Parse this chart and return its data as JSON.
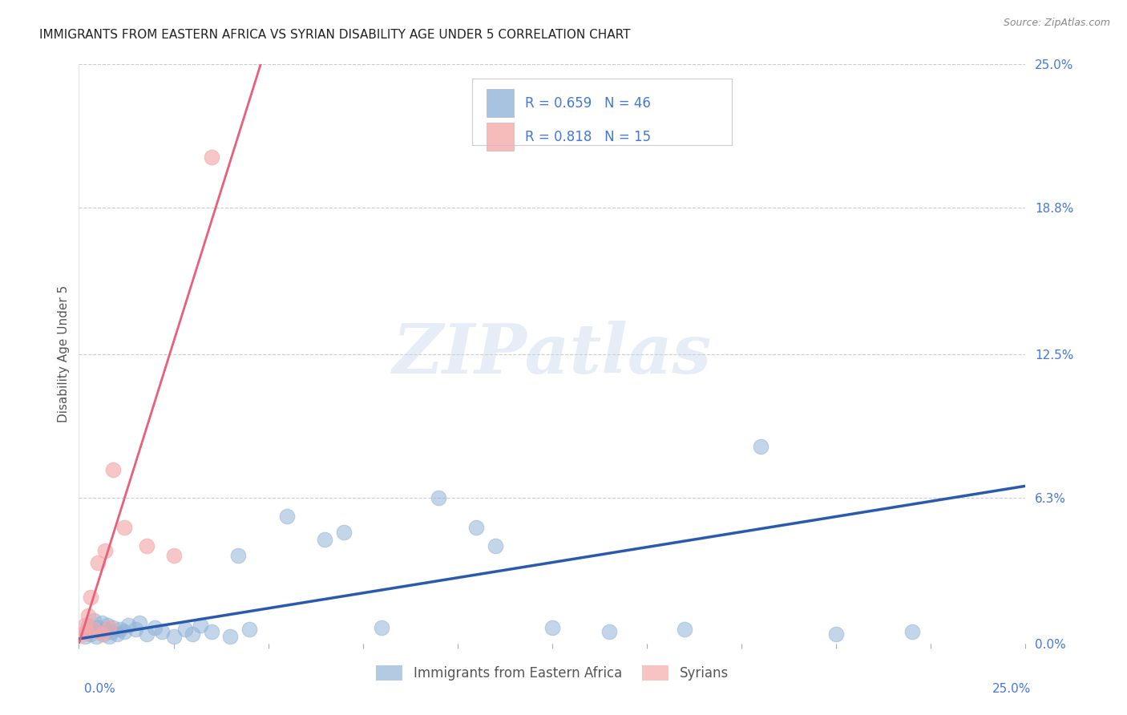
{
  "title": "IMMIGRANTS FROM EASTERN AFRICA VS SYRIAN DISABILITY AGE UNDER 5 CORRELATION CHART",
  "source": "Source: ZipAtlas.com",
  "ylabel": "Disability Age Under 5",
  "ytick_values": [
    0.0,
    6.3,
    12.5,
    18.8,
    25.0
  ],
  "ytick_labels": [
    "0.0%",
    "6.3%",
    "12.5%",
    "18.8%",
    "25.0%"
  ],
  "xlim": [
    0.0,
    25.0
  ],
  "ylim": [
    0.0,
    25.0
  ],
  "legend_text_blue": "R = 0.659   N = 46",
  "legend_text_pink": "R = 0.818   N = 15",
  "legend_label_blue": "Immigrants from Eastern Africa",
  "legend_label_pink": "Syrians",
  "blue_color": "#92B4D7",
  "pink_color": "#F4AAAA",
  "blue_line_color": "#2A5AAD",
  "pink_line_color": "#E8607A",
  "dashed_color": "#F0BBCC",
  "legend_text_color": "#4477DD",
  "title_color": "#222222",
  "ylabel_color": "#555555",
  "tick_label_color": "#4477DD",
  "source_color": "#888888",
  "watermark_color": "#C8D8EC",
  "watermark": "ZIPatlas",
  "blue_scatter_x": [
    0.15,
    0.2,
    0.25,
    0.3,
    0.35,
    0.4,
    0.45,
    0.5,
    0.55,
    0.6,
    0.65,
    0.7,
    0.75,
    0.8,
    0.85,
    0.9,
    1.0,
    1.1,
    1.2,
    1.3,
    1.5,
    1.6,
    1.8,
    2.0,
    2.2,
    2.5,
    2.8,
    3.0,
    3.2,
    3.5,
    4.0,
    4.5,
    5.5,
    6.5,
    8.0,
    9.5,
    11.0,
    14.0,
    16.0,
    18.0,
    20.0,
    22.0,
    7.0,
    10.5,
    12.5,
    4.2
  ],
  "blue_scatter_y": [
    0.3,
    0.5,
    0.8,
    0.4,
    0.6,
    1.0,
    0.3,
    0.7,
    0.5,
    0.9,
    0.4,
    0.6,
    0.8,
    0.3,
    0.5,
    0.7,
    0.4,
    0.6,
    0.5,
    0.8,
    0.6,
    0.9,
    0.4,
    0.7,
    0.5,
    0.3,
    0.6,
    0.4,
    0.8,
    0.5,
    0.3,
    0.6,
    5.5,
    4.5,
    0.7,
    6.3,
    4.2,
    0.5,
    0.6,
    8.5,
    0.4,
    0.5,
    4.8,
    5.0,
    0.7,
    3.8
  ],
  "pink_scatter_x": [
    0.1,
    0.15,
    0.2,
    0.25,
    0.3,
    0.4,
    0.5,
    0.6,
    0.7,
    0.8,
    0.9,
    1.2,
    1.8,
    2.5,
    3.5
  ],
  "pink_scatter_y": [
    0.4,
    0.8,
    0.5,
    1.2,
    2.0,
    0.6,
    3.5,
    0.4,
    4.0,
    0.7,
    7.5,
    5.0,
    4.2,
    3.8,
    21.0
  ],
  "blue_trend_x0": 0.0,
  "blue_trend_y0": 0.2,
  "blue_trend_x1": 25.0,
  "blue_trend_y1": 6.8,
  "pink_trend_x0": 0.0,
  "pink_trend_y0": 0.0,
  "pink_trend_x1": 4.8,
  "pink_trend_y1": 25.0,
  "dashed_x0": 0.0,
  "dashed_y0": 0.0,
  "dashed_x1": 4.8,
  "dashed_y1": 25.0
}
